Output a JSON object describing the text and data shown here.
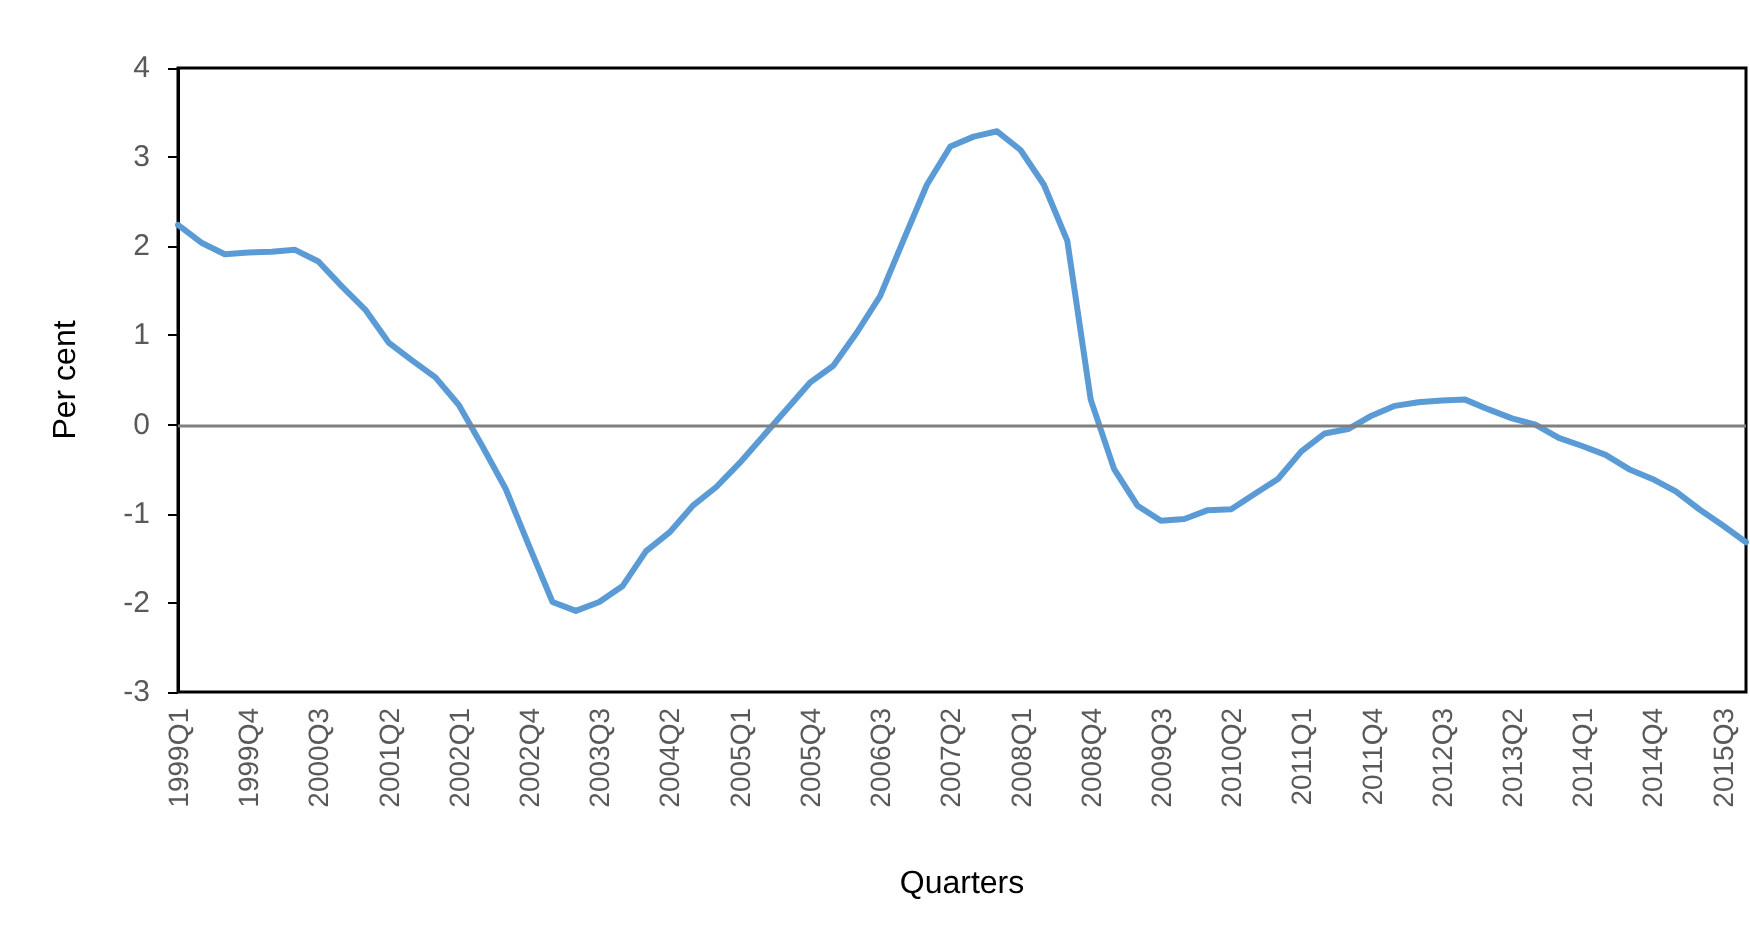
{
  "chart_data": {
    "type": "line",
    "xlabel": "Quarters",
    "ylabel": "Per cent",
    "categories": [
      "1999Q1",
      null,
      null,
      "1999Q4",
      null,
      null,
      "2000Q3",
      null,
      null,
      "2001Q2",
      null,
      null,
      "2002Q1",
      null,
      null,
      "2002Q4",
      null,
      null,
      "2003Q3",
      null,
      null,
      "2004Q2",
      null,
      null,
      "2005Q1",
      null,
      null,
      "2005Q4",
      null,
      null,
      "2006Q3",
      null,
      null,
      "2007Q2",
      null,
      null,
      "2008Q1",
      null,
      null,
      "2008Q4",
      null,
      null,
      "2009Q3",
      null,
      null,
      "2010Q2",
      null,
      null,
      "2011Q1",
      null,
      null,
      "2011Q4",
      null,
      null,
      "2012Q3",
      null,
      null,
      "2013Q2",
      null,
      null,
      "2014Q1",
      null,
      null,
      "2014Q4",
      null,
      null,
      "2015Q3",
      null
    ],
    "series": [
      {
        "color": "#5b9bd5",
        "values": [
          2.24,
          2.04,
          1.91,
          1.93,
          1.94,
          1.96,
          1.83,
          1.55,
          1.29,
          0.92,
          0.72,
          0.53,
          0.22,
          -0.24,
          -0.72,
          -1.36,
          -1.99,
          -2.09,
          -1.99,
          -1.81,
          -1.42,
          -1.21,
          -0.91,
          -0.7,
          -0.43,
          -0.13,
          0.17,
          0.47,
          0.66,
          1.03,
          1.44,
          2.07,
          2.69,
          3.12,
          3.23,
          3.29,
          3.08,
          2.69,
          2.06,
          0.28,
          -0.5,
          -0.91,
          -1.08,
          -1.06,
          -0.96,
          -0.95,
          -0.78,
          -0.61,
          -0.3,
          -0.1,
          -0.05,
          0.1,
          0.21,
          0.25,
          0.27,
          0.28,
          0.17,
          0.07,
          0,
          -0.15,
          -0.24,
          -0.34,
          -0.5,
          -0.61,
          -0.75,
          -0.95,
          -1.13,
          -1.32
        ]
      }
    ],
    "ylim": [
      -3,
      4
    ],
    "yticks": [
      -3,
      -2,
      -1,
      0,
      1,
      2,
      3,
      4
    ],
    "ref_lines": [
      {
        "axis": "y",
        "value": 0,
        "color": "#808080"
      }
    ],
    "grid": false,
    "marker": "none",
    "line_style": "solid"
  }
}
